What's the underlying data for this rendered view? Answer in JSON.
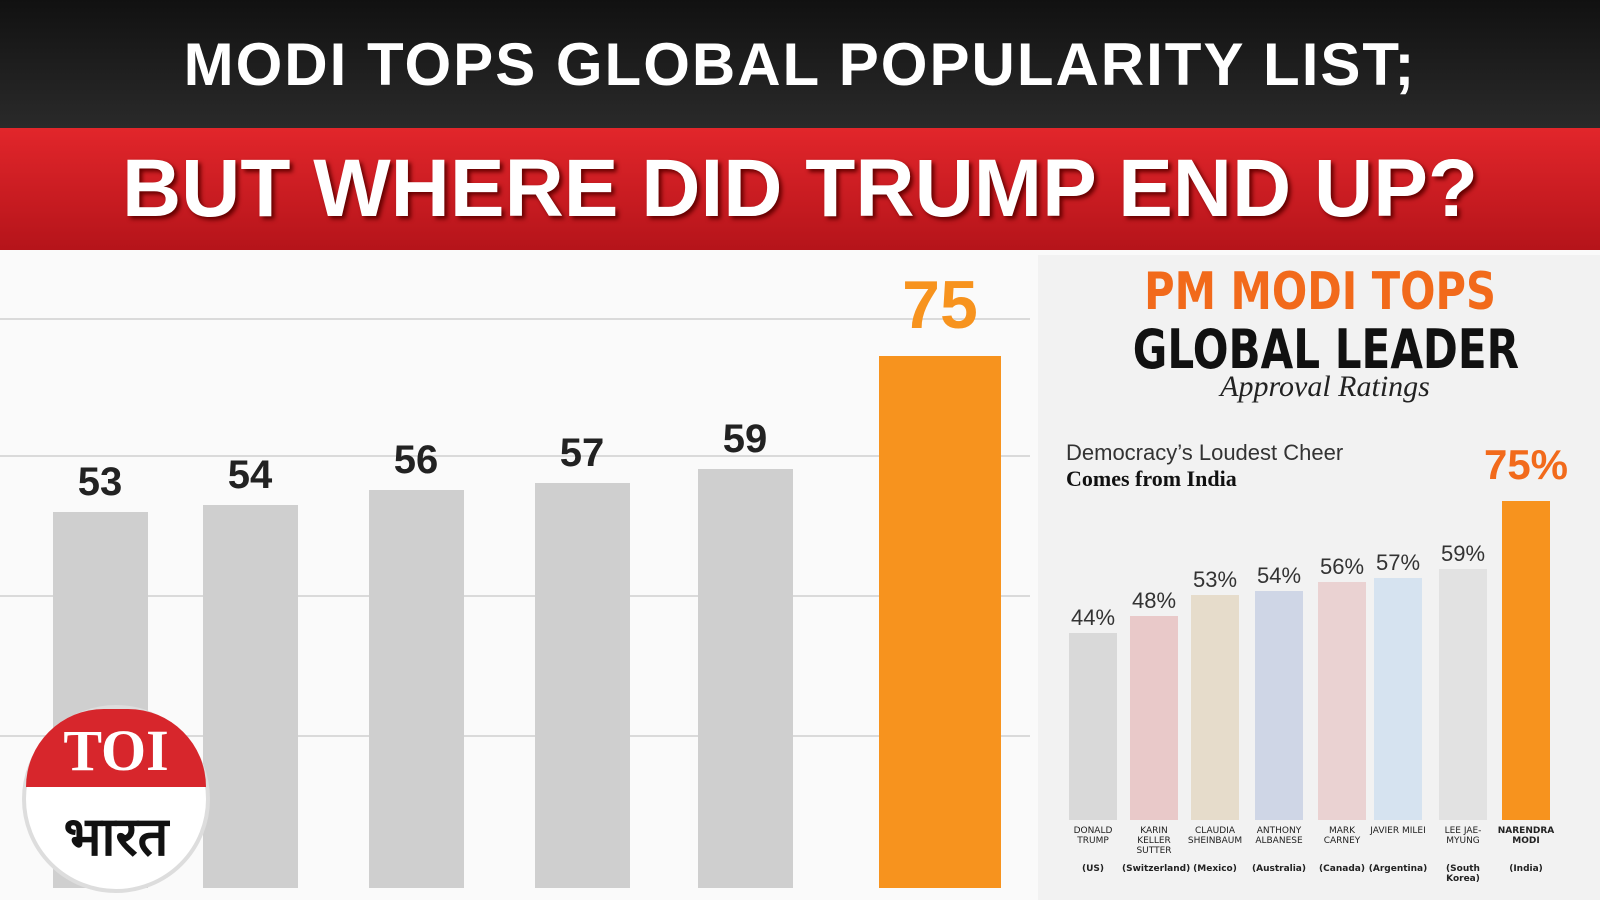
{
  "header": {
    "line1": "MODI TOPS GLOBAL POPULARITY LIST;",
    "line2": "BUT WHERE DID TRUMP END UP?"
  },
  "logo": {
    "top": "TOI",
    "bottom": "भारत"
  },
  "chart_data": [
    {
      "type": "bar",
      "categories": [
        null,
        null,
        null,
        null,
        null,
        null
      ],
      "values": [
        53,
        54,
        56,
        57,
        59,
        75
      ],
      "colors": [
        "#cfcfcf",
        "#cfcfcf",
        "#cfcfcf",
        "#cfcfcf",
        "#cfcfcf",
        "#f7931e"
      ],
      "label_colors": [
        "#222222",
        "#222222",
        "#222222",
        "#222222",
        "#222222",
        "#f7931e"
      ]
    },
    {
      "type": "bar",
      "title": "PM MODI TOPS",
      "subtitle": "GLOBAL LEADER",
      "caption": "Approval Ratings",
      "note_line1": "Democracy’s Loudest Cheer",
      "note_line2": "Comes from India",
      "categories": [
        "DONALD TRUMP",
        "KARIN KELLER SUTTER",
        "CLAUDIA SHEINBAUM",
        "ANTHONY ALBANESE",
        "MARK CARNEY",
        "JAVIER MILEI",
        "LEE JAE-MYUNG",
        "NARENDRA MODI"
      ],
      "countries": [
        "(US)",
        "(Switzerland)",
        "(Mexico)",
        "(Australia)",
        "(Canada)",
        "(Argentina)",
        "(South Korea)",
        "(India)"
      ],
      "values": [
        44,
        48,
        53,
        54,
        56,
        57,
        59,
        75
      ],
      "value_labels": [
        "44%",
        "48%",
        "53%",
        "54%",
        "56%",
        "57%",
        "59%",
        "75%"
      ],
      "colors": [
        "#d9d9d9",
        "#e9c9c9",
        "#e6dccb",
        "#cfd6e6",
        "#ead2d2",
        "#d6e3f0",
        "#e2e2e2",
        "#f7931e"
      ]
    }
  ]
}
